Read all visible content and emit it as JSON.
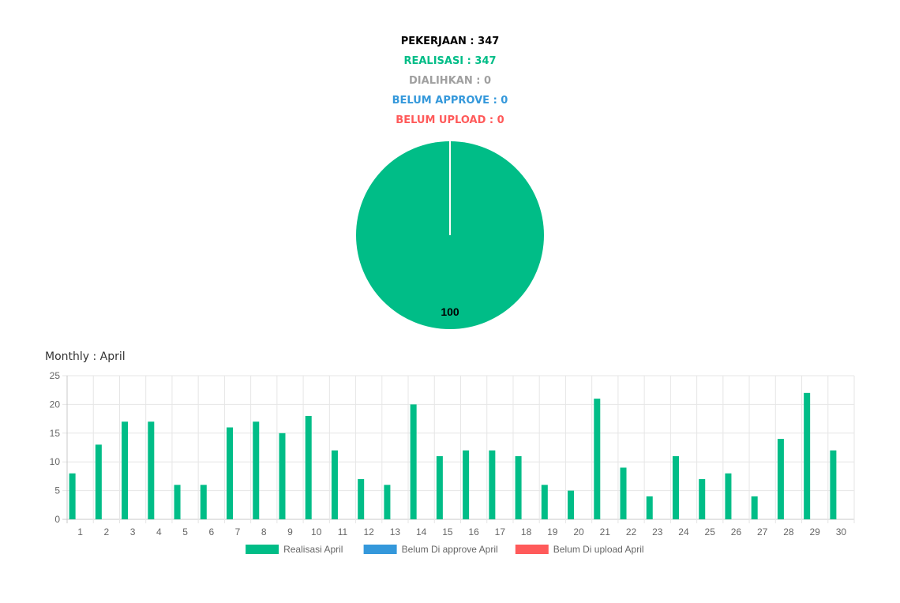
{
  "stats": {
    "pekerjaan": "PEKERJAAN : 347",
    "realisasi": "REALISASI : 347",
    "dialihkan": "DIALIHKAN : 0",
    "belum_approve": "BELUM APPROVE : 0",
    "belum_upload": "BELUM UPLOAD : 0"
  },
  "colors": {
    "pekerjaan": "#000000",
    "realisasi": "#00bd87",
    "dialihkan": "#a0a0a0",
    "belum_approve": "#3498db",
    "belum_upload": "#ff5a5a",
    "grid": "#e6e6e6",
    "axis_text": "#666666"
  },
  "monthly": {
    "title": "Monthly : April"
  },
  "chart_data": [
    {
      "type": "pie",
      "slices": [
        {
          "name": "Realisasi",
          "value": 347,
          "color": "#00bd87"
        },
        {
          "name": "Dialihkan",
          "value": 0,
          "color": "#a0a0a0"
        },
        {
          "name": "Belum Approve",
          "value": 0,
          "color": "#3498db"
        },
        {
          "name": "Belum Upload",
          "value": 0,
          "color": "#ff5a5a"
        }
      ],
      "data_labels": [
        "100"
      ]
    },
    {
      "type": "bar",
      "categories": [
        "1",
        "2",
        "3",
        "4",
        "5",
        "6",
        "7",
        "8",
        "9",
        "10",
        "11",
        "12",
        "13",
        "14",
        "15",
        "16",
        "17",
        "18",
        "19",
        "20",
        "21",
        "22",
        "23",
        "24",
        "25",
        "26",
        "27",
        "28",
        "29",
        "30"
      ],
      "series": [
        {
          "name": "Realisasi April",
          "color": "#00bd87",
          "values": [
            8,
            13,
            17,
            17,
            6,
            6,
            16,
            17,
            15,
            18,
            12,
            7,
            6,
            20,
            11,
            12,
            12,
            11,
            6,
            5,
            21,
            9,
            4,
            11,
            7,
            8,
            4,
            14,
            22,
            12
          ]
        },
        {
          "name": "Belum Di approve April",
          "color": "#3498db",
          "values": [
            0,
            0,
            0,
            0,
            0,
            0,
            0,
            0,
            0,
            0,
            0,
            0,
            0,
            0,
            0,
            0,
            0,
            0,
            0,
            0,
            0,
            0,
            0,
            0,
            0,
            0,
            0,
            0,
            0,
            0
          ]
        },
        {
          "name": "Belum Di upload April",
          "color": "#ff5a5a",
          "values": [
            0,
            0,
            0,
            0,
            0,
            0,
            0,
            0,
            0,
            0,
            0,
            0,
            0,
            0,
            0,
            0,
            0,
            0,
            0,
            0,
            0,
            0,
            0,
            0,
            0,
            0,
            0,
            0,
            0,
            0
          ]
        }
      ],
      "yticks": [
        "0",
        "5",
        "10",
        "15",
        "20",
        "25"
      ],
      "ylim": [
        0,
        25
      ],
      "grid": true,
      "legend_position": "bottom"
    }
  ]
}
